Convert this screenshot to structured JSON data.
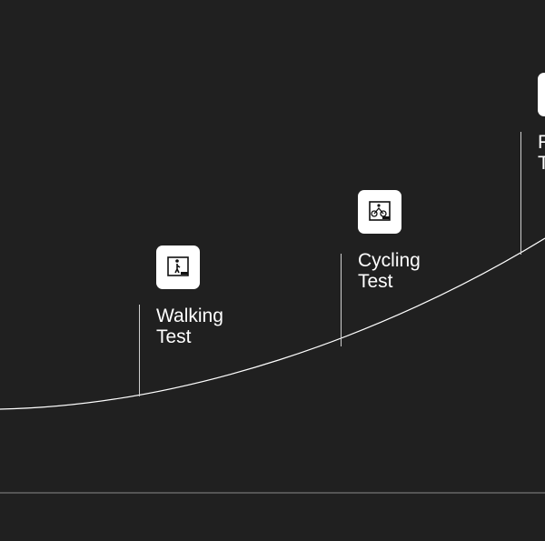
{
  "milestones": [
    {
      "label": [
        "Walking",
        "Test"
      ]
    },
    {
      "label": [
        "Cycling",
        "Test"
      ]
    },
    {
      "label": [
        "Running",
        "Test"
      ]
    }
  ]
}
